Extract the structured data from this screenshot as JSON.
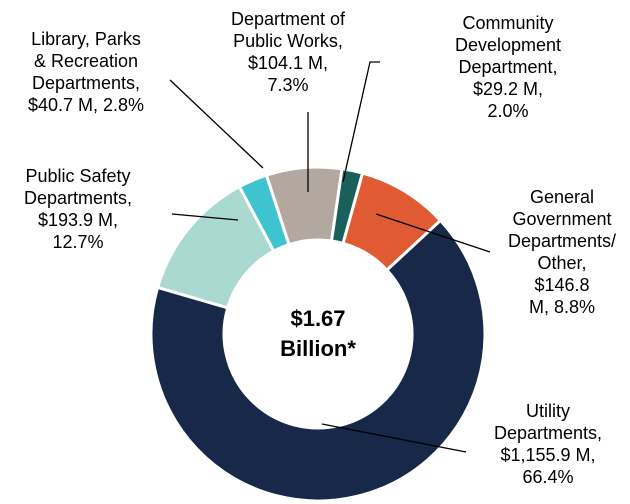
{
  "chart_data": {
    "type": "donut",
    "center_label": "$1.67\nBillion*",
    "values": [
      7.3,
      2.0,
      8.8,
      66.4,
      12.7,
      2.8
    ],
    "value_labels": [
      "Department of\nPublic Works,\n$104.1 M,\n7.3%",
      "Community\nDevelopment\nDepartment, $29.2 M,\n2.0%",
      "General\nGovernment\nDepartments/\nOther, $146.8\nM, 8.8%",
      "Utility\nDepartments,\n$1,155.9 M,\n66.4%",
      "Public Safety\nDepartments,\n$193.9 M,\n12.7%",
      "Library, Parks\n& Recreation\nDepartments,\n$40.7 M, 2.8%"
    ],
    "colors": [
      "#b2a89f",
      "#1b5f5b",
      "#e05a33",
      "#172849",
      "#a9d9d1",
      "#3fc3cf"
    ]
  }
}
